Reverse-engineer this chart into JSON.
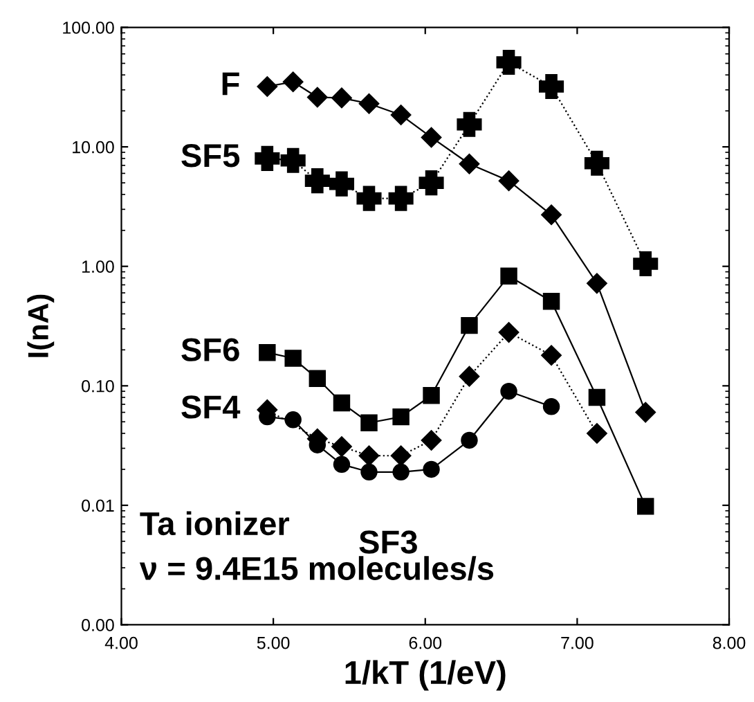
{
  "chart_data": {
    "type": "line",
    "xlabel": "1/kT (1/eV)",
    "ylabel": "I(nA)",
    "x": [
      4.96,
      5.13,
      5.29,
      5.45,
      5.63,
      5.84,
      6.04,
      6.29,
      6.55,
      6.83,
      7.13,
      7.45
    ],
    "series": [
      {
        "name": "F",
        "color": "#000000",
        "marker": "diamond",
        "line_style": "solid",
        "values": [
          32,
          35,
          26,
          25.7,
          23,
          18.5,
          12,
          7.2,
          5.2,
          2.7,
          0.72,
          0.06
        ]
      },
      {
        "name": "SF5",
        "color": "#000000",
        "marker": "cross",
        "line_style": "dotted",
        "values": [
          8.0,
          7.7,
          5.2,
          4.9,
          3.7,
          3.7,
          5.0,
          15.4,
          51,
          32,
          7.3,
          1.05
        ]
      },
      {
        "name": "SF6",
        "color": "#000000",
        "marker": "square",
        "line_style": "solid",
        "values": [
          0.19,
          0.17,
          0.115,
          0.072,
          0.049,
          0.055,
          0.083,
          0.32,
          0.83,
          0.51,
          0.08,
          0.0098
        ]
      },
      {
        "name": "SF4",
        "color": "#000000",
        "marker": "diamond",
        "line_style": "dotted",
        "values": [
          0.063,
          null,
          0.036,
          0.031,
          0.026,
          0.026,
          0.035,
          0.12,
          0.28,
          0.18,
          0.04,
          null
        ]
      },
      {
        "name": "SF3",
        "color": "#000000",
        "marker": "circle",
        "line_style": "solid",
        "values": [
          0.055,
          0.052,
          0.032,
          0.022,
          0.019,
          0.019,
          0.02,
          0.035,
          0.09,
          0.067,
          null,
          null
        ]
      }
    ],
    "log": "y",
    "xlim": [
      4.0,
      8.0
    ],
    "xticks": [
      {
        "value": 4,
        "label": "4.00"
      },
      {
        "value": 5,
        "label": "5.00"
      },
      {
        "value": 6,
        "label": "6.00"
      },
      {
        "value": 7,
        "label": "7.00"
      },
      {
        "value": 8,
        "label": "8.00"
      }
    ],
    "ylim": [
      0.001,
      100
    ],
    "yticks": [
      {
        "value": 0.001,
        "label": "0.00"
      },
      {
        "value": 0.01,
        "label": "0.01"
      },
      {
        "value": 0.1,
        "label": "0.10"
      },
      {
        "value": 1,
        "label": "1.00"
      },
      {
        "value": 10,
        "label": "10.00"
      },
      {
        "value": 100,
        "label": "100.00"
      }
    ],
    "grid": false,
    "legend": false,
    "annotations": [
      "Ta ionizer",
      "ν = 9.4E15 molecules/s"
    ]
  }
}
